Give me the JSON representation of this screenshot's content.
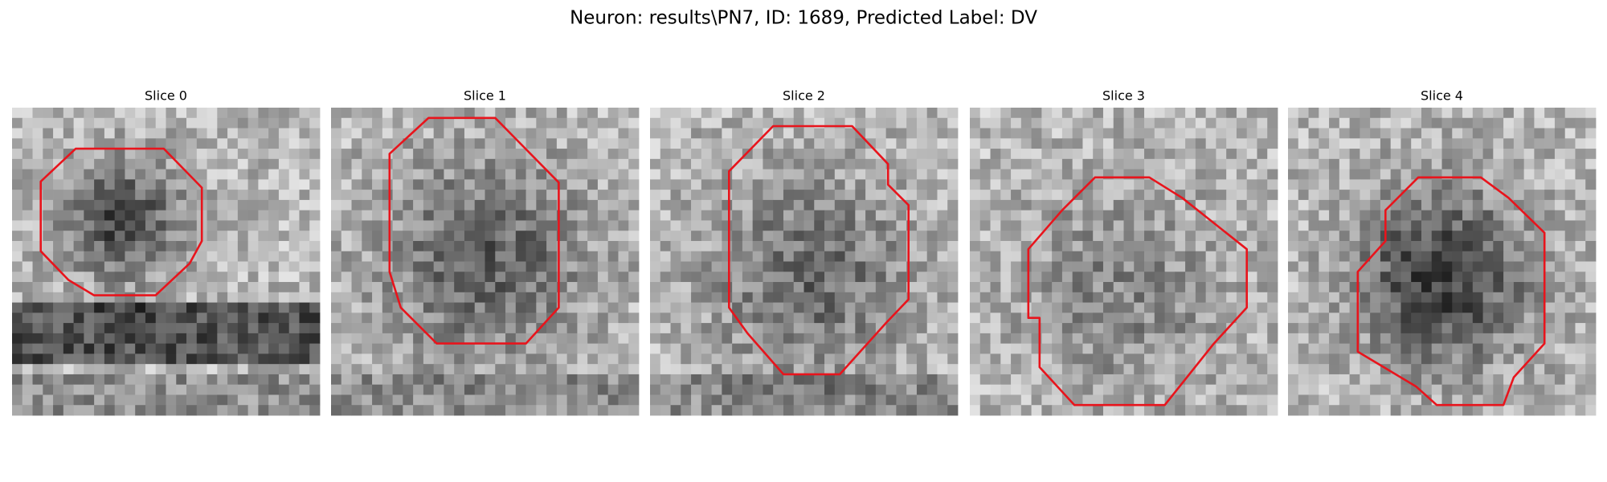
{
  "title": "Neuron: results\\PN7, ID: 1689, Predicted Label: DV",
  "panels": [
    {
      "title": "Slice 0"
    },
    {
      "title": "Slice 1"
    },
    {
      "title": "Slice 2"
    },
    {
      "title": "Slice 3"
    },
    {
      "title": "Slice 4"
    }
  ]
}
